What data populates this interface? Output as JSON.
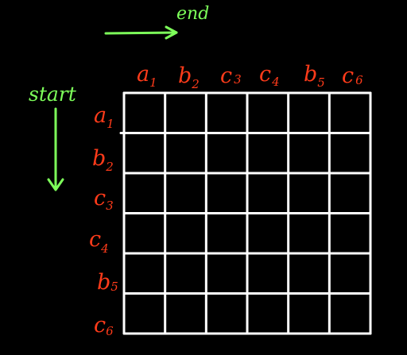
{
  "annotations": {
    "end_label": "end",
    "start_label": "start"
  },
  "matrix": {
    "rows": 6,
    "cols": 6,
    "column_labels": [
      {
        "letter": "a",
        "index": "1"
      },
      {
        "letter": "b",
        "index": "2"
      },
      {
        "letter": "c",
        "index": "3"
      },
      {
        "letter": "c",
        "index": "4"
      },
      {
        "letter": "b",
        "index": "5"
      },
      {
        "letter": "c",
        "index": "6"
      }
    ],
    "row_labels": [
      {
        "letter": "a",
        "index": "1"
      },
      {
        "letter": "b",
        "index": "2"
      },
      {
        "letter": "c",
        "index": "3"
      },
      {
        "letter": "c",
        "index": "4"
      },
      {
        "letter": "b",
        "index": "5"
      },
      {
        "letter": "c",
        "index": "6"
      }
    ]
  },
  "colors": {
    "background": "#000000",
    "grid": "#ffffff",
    "labels": "#ff3b1a",
    "annotation": "#7dff5a"
  }
}
